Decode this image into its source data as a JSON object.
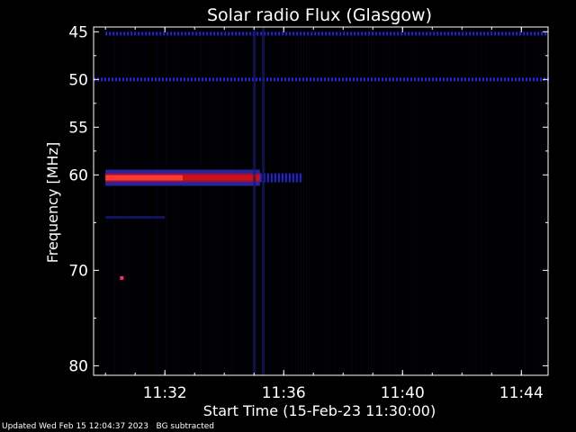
{
  "chart_data": {
    "type": "heatmap",
    "title": "Solar radio Flux (Glasgow)",
    "xlabel": "Start Time (15-Feb-23 11:30:00)",
    "ylabel": "Frequency [MHz]",
    "x_ticks": [
      "11:32",
      "11:36",
      "11:40",
      "11:44"
    ],
    "x_tick_minutes": [
      2,
      6,
      10,
      14
    ],
    "x_range_minutes": [
      -0.4,
      14.9
    ],
    "y_ticks": [
      45,
      50,
      55,
      60,
      70,
      80
    ],
    "y_range_mhz": [
      44.5,
      81
    ],
    "features": [
      {
        "kind": "band",
        "freq_mhz": 45.2,
        "t_start_min": 0.0,
        "t_end_min": 14.9,
        "intensity": "low",
        "color": "blue"
      },
      {
        "kind": "band",
        "freq_mhz": 50.0,
        "t_start_min": -0.4,
        "t_end_min": 14.9,
        "intensity": "low",
        "color": "blue"
      },
      {
        "kind": "band",
        "freq_mhz": 60.3,
        "t_start_min": 0.0,
        "t_end_min": 2.6,
        "intensity": "high",
        "color": "red"
      },
      {
        "kind": "band",
        "freq_mhz": 60.3,
        "t_start_min": 2.6,
        "t_end_min": 5.2,
        "intensity": "medium",
        "color": "red"
      },
      {
        "kind": "band",
        "freq_mhz": 60.3,
        "t_start_min": 5.2,
        "t_end_min": 6.6,
        "intensity": "low",
        "color": "blue"
      },
      {
        "kind": "band",
        "freq_mhz": 64.5,
        "t_start_min": 0.0,
        "t_end_min": 2.0,
        "intensity": "low",
        "color": "dark-blue"
      },
      {
        "kind": "spot",
        "freq_mhz": 70.8,
        "t_min": 0.55,
        "intensity": "high",
        "color": "magenta"
      },
      {
        "kind": "vertical",
        "t_min": 5.0,
        "f_start_mhz": 44.5,
        "f_end_mhz": 81,
        "intensity": "low"
      },
      {
        "kind": "vertical",
        "t_min": 5.3,
        "f_start_mhz": 44.5,
        "f_end_mhz": 81,
        "intensity": "low"
      }
    ],
    "colors": {
      "background": "#000000",
      "band_low": "#2a2aff",
      "band_mid": "#cc1111",
      "band_high": "#ff3a2a",
      "noise": "#0a0a3a"
    }
  },
  "footer": {
    "updated": "Updated Wed Feb 15 12:04:37 2023",
    "note": "BG subtracted"
  }
}
